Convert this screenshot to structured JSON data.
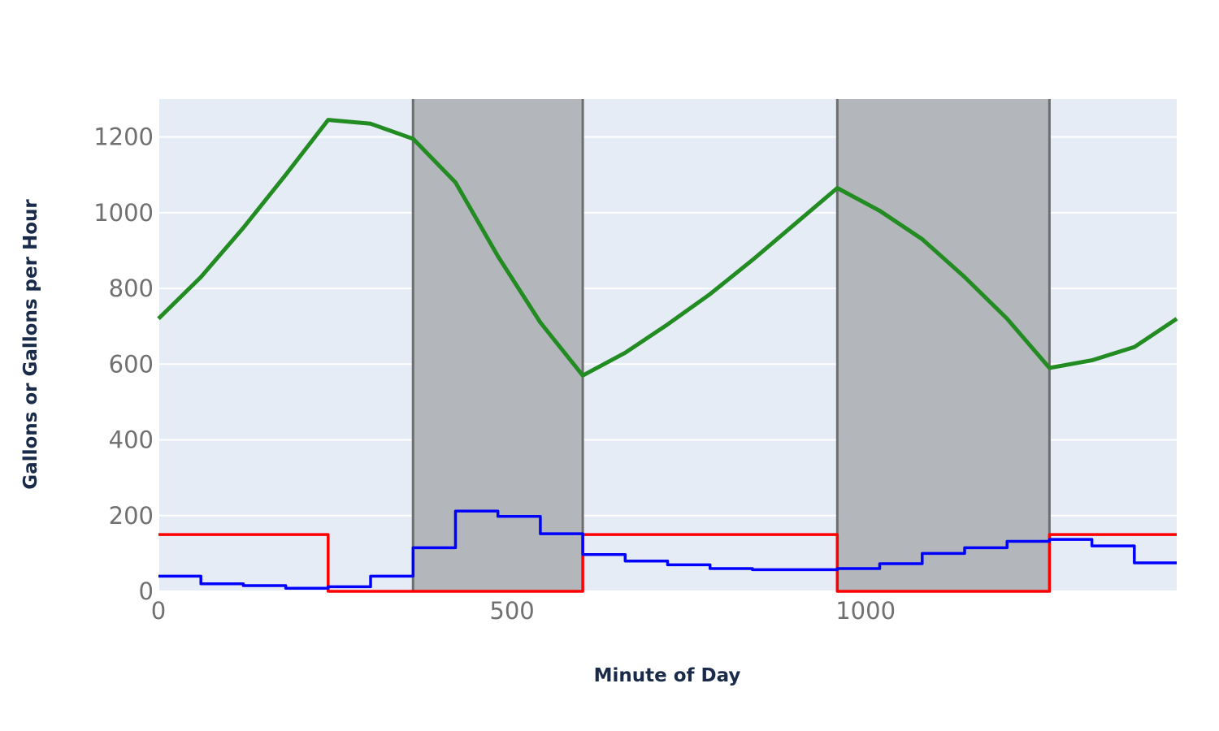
{
  "chart_data": {
    "type": "line",
    "title": "",
    "xlabel": "Minute of Day",
    "ylabel": "Gallons or Gallons per Hour",
    "xlim": [
      0,
      1440
    ],
    "ylim": [
      0,
      1300
    ],
    "x_ticks": [
      0,
      500,
      1000
    ],
    "x_tick_labels": [
      "0",
      "500",
      "1000"
    ],
    "y_ticks": [
      0,
      200,
      400,
      600,
      800,
      1000,
      1200
    ],
    "y_tick_labels": [
      "0",
      "200",
      "400",
      "600",
      "800",
      "1000",
      "1200"
    ],
    "grid": true,
    "legend": "none",
    "shaded_regions": [
      {
        "x0": 360,
        "x1": 600
      },
      {
        "x0": 960,
        "x1": 1260
      }
    ],
    "series": [
      {
        "type": "line",
        "color": "#228b22",
        "x": [
          0,
          60,
          120,
          180,
          240,
          300,
          360,
          420,
          480,
          540,
          600,
          660,
          720,
          780,
          840,
          900,
          960,
          1020,
          1080,
          1140,
          1200,
          1260,
          1320,
          1380,
          1440
        ],
        "y": [
          720,
          830,
          960,
          1100,
          1245,
          1235,
          1195,
          1080,
          885,
          710,
          570,
          630,
          705,
          785,
          875,
          970,
          1065,
          1005,
          930,
          830,
          720,
          590,
          610,
          645,
          720
        ]
      },
      {
        "type": "step",
        "color": "#ff0000",
        "x": [
          0,
          240,
          240,
          600,
          600,
          960,
          960,
          1260,
          1260,
          1440
        ],
        "y": [
          150,
          150,
          0,
          0,
          150,
          150,
          0,
          0,
          150,
          150
        ]
      },
      {
        "type": "step",
        "color": "#0000ff",
        "x": [
          0,
          60,
          120,
          180,
          240,
          300,
          360,
          420,
          480,
          540,
          600,
          660,
          720,
          780,
          840,
          900,
          960,
          1020,
          1080,
          1140,
          1200,
          1260,
          1320,
          1380,
          1440
        ],
        "y": [
          40,
          20,
          15,
          8,
          12,
          40,
          115,
          212,
          198,
          152,
          97,
          80,
          70,
          60,
          57,
          57,
          60,
          73,
          100,
          115,
          132,
          137,
          120,
          75,
          75
        ]
      }
    ]
  }
}
